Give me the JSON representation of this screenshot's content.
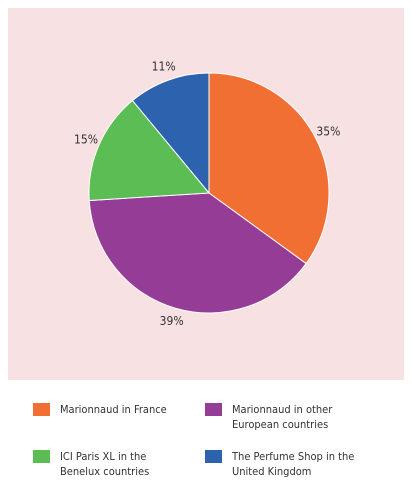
{
  "chart_data": {
    "type": "pie",
    "categories": [
      "Marionnaud in France",
      "Marionnaud in other European countries",
      "ICI Paris XL in the Benelux countries",
      "The Perfume Shop in the United Kingdom"
    ],
    "values": [
      35,
      39,
      15,
      11
    ],
    "value_labels": [
      "35%",
      "39%",
      "15%",
      "11%"
    ],
    "colors": [
      "#f26f33",
      "#953c96",
      "#5cbd55",
      "#2d62ae"
    ]
  }
}
